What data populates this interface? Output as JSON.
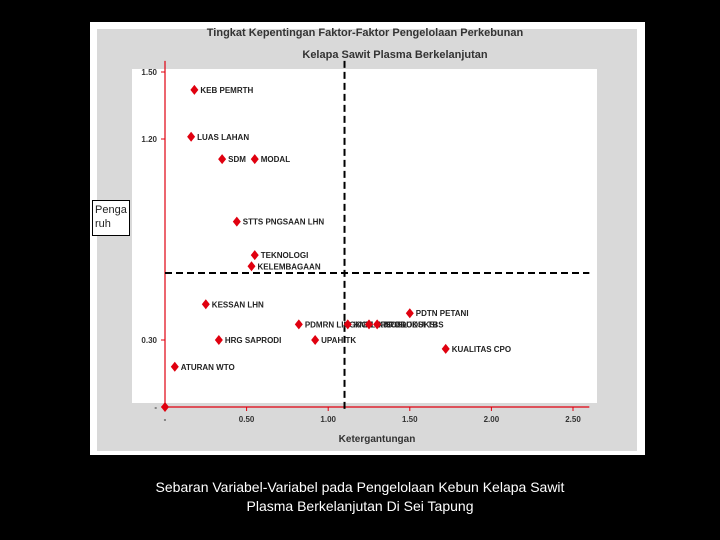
{
  "chart_data": {
    "type": "scatter",
    "title_lines": [
      "Tingkat Kepentingan Faktor-Faktor Pengelolaan Perkebunan",
      "Kelapa Sawit Plasma Berkelanjutan"
    ],
    "xlabel": "Ketergantungan",
    "ylabel_lines": [
      "Penga",
      "ruh"
    ],
    "xlim": [
      -0.05,
      2.6
    ],
    "ylim": [
      -0.02,
      1.55
    ],
    "x_ticks": [
      {
        "value": 0,
        "label": "-"
      },
      {
        "value": 0.5,
        "label": "0.50"
      },
      {
        "value": 1.0,
        "label": "1.00"
      },
      {
        "value": 1.5,
        "label": "1.50"
      },
      {
        "value": 2.0,
        "label": "2.00"
      },
      {
        "value": 2.5,
        "label": "2.50"
      }
    ],
    "y_ticks": [
      {
        "value": 0,
        "label": "-"
      },
      {
        "value": 0.3,
        "label": "0.30"
      },
      {
        "value": 1.2,
        "label": "1.20"
      },
      {
        "value": 1.5,
        "label": "1.50"
      }
    ],
    "quadrant_x": 1.1,
    "quadrant_y": 0.6,
    "marker_color": "#e0000f",
    "points": [
      {
        "label": "KEB PEMRTH",
        "x": 0.18,
        "y": 1.42
      },
      {
        "label": "LUAS LAHAN",
        "x": 0.16,
        "y": 1.21
      },
      {
        "label": "SDM",
        "x": 0.35,
        "y": 1.11
      },
      {
        "label": "MODAL",
        "x": 0.55,
        "y": 1.11
      },
      {
        "label": "STTS PNGSAAN LHN",
        "x": 0.44,
        "y": 0.83
      },
      {
        "label": "TEKNOLOGI",
        "x": 0.55,
        "y": 0.68
      },
      {
        "label": "KELEMBAGAAN",
        "x": 0.53,
        "y": 0.63
      },
      {
        "label": "KESSAN LHN",
        "x": 0.25,
        "y": 0.46
      },
      {
        "label": "PDMRN LINGKGN",
        "x": 0.82,
        "y": 0.37
      },
      {
        "label": "KNFLIK SOSL",
        "x": 1.12,
        "y": 0.37
      },
      {
        "label": "HRG PRODUKSI",
        "x": 1.25,
        "y": 0.37
      },
      {
        "label": "PDTN PETANI",
        "x": 1.5,
        "y": 0.42
      },
      {
        "label": "HRG SAPRODI",
        "x": 0.33,
        "y": 0.3
      },
      {
        "label": "UPAH TK",
        "x": 0.92,
        "y": 0.3
      },
      {
        "label": "PRODUKSI TBS",
        "x": 1.3,
        "y": 0.37
      },
      {
        "label": "KUALITAS CPO",
        "x": 1.72,
        "y": 0.26
      },
      {
        "label": "ATURAN WTO",
        "x": 0.06,
        "y": 0.18
      },
      {
        "label": "",
        "x": 0.0,
        "y": 0.0
      }
    ]
  },
  "caption_lines": [
    "Sebaran Variabel-Variabel pada Pengelolaan Kebun Kelapa Sawit",
    "Plasma Berkelanjutan Di Sei Tapung"
  ]
}
